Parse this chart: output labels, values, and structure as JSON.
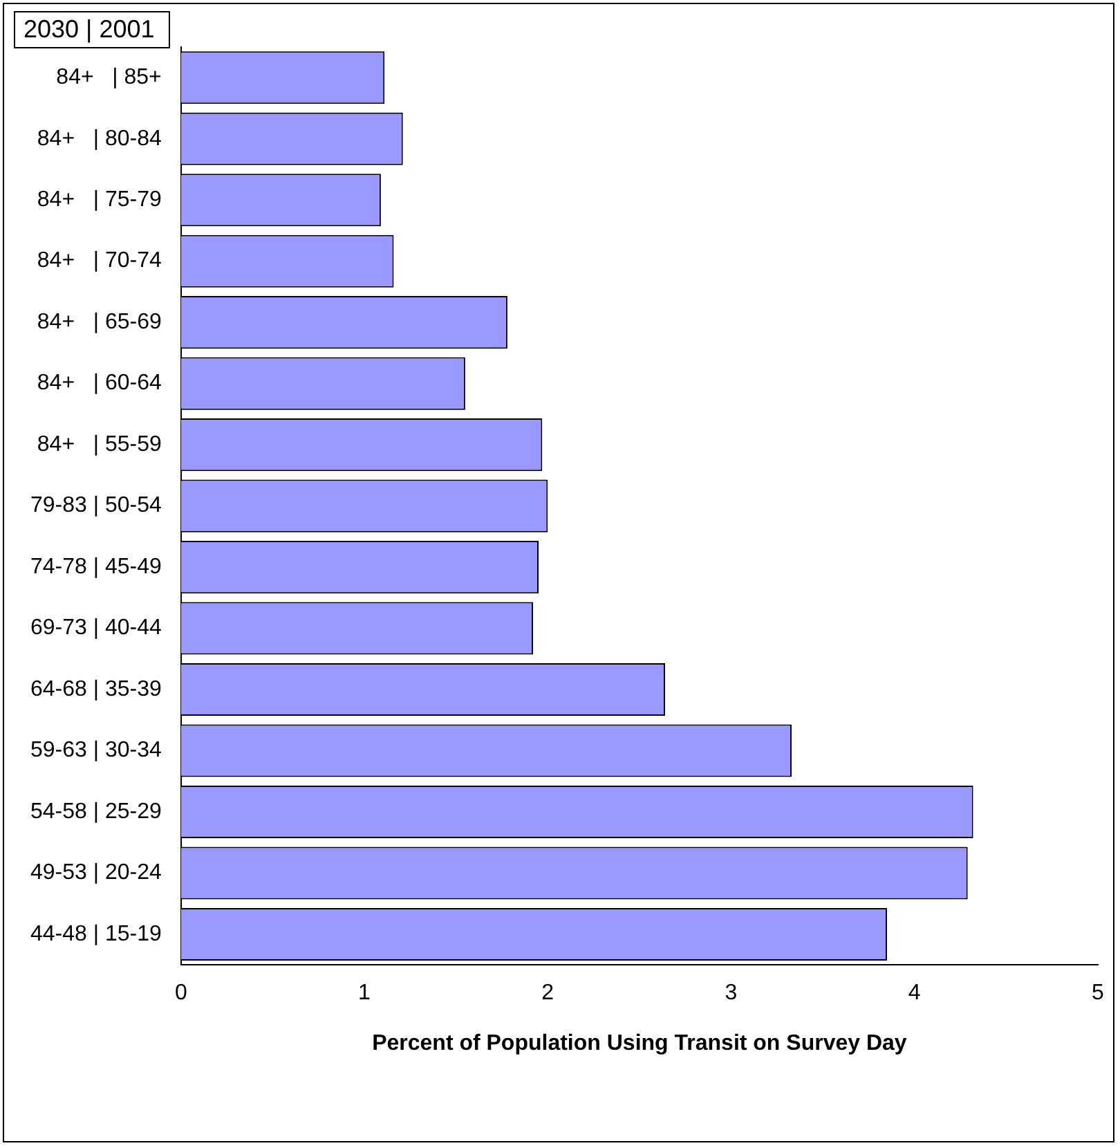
{
  "chart_data": {
    "type": "bar",
    "orientation": "horizontal",
    "title": "2030 | 2001",
    "xlabel": "Percent of Population Using Transit on Survey Day",
    "categories": [
      "84+   | 85+",
      "84+   | 80-84",
      "84+   | 75-79",
      "84+   | 70-74",
      "84+   | 65-69",
      "84+   | 60-64",
      "84+   | 55-59",
      "79-83 | 50-54",
      "74-78 | 45-49",
      "69-73 | 40-44",
      "64-68 | 35-39",
      "59-63 | 30-34",
      "54-58 | 25-29",
      "49-53 | 20-24",
      "44-48 | 15-19"
    ],
    "values": [
      1.11,
      1.21,
      1.09,
      1.16,
      1.78,
      1.55,
      1.97,
      2.0,
      1.95,
      1.92,
      2.64,
      3.33,
      4.32,
      4.29,
      3.85
    ],
    "color": "#9999ff",
    "xlim": [
      0,
      5
    ],
    "xticks": [
      0,
      1,
      2,
      3,
      4,
      5
    ],
    "grid": false,
    "legend": false
  }
}
